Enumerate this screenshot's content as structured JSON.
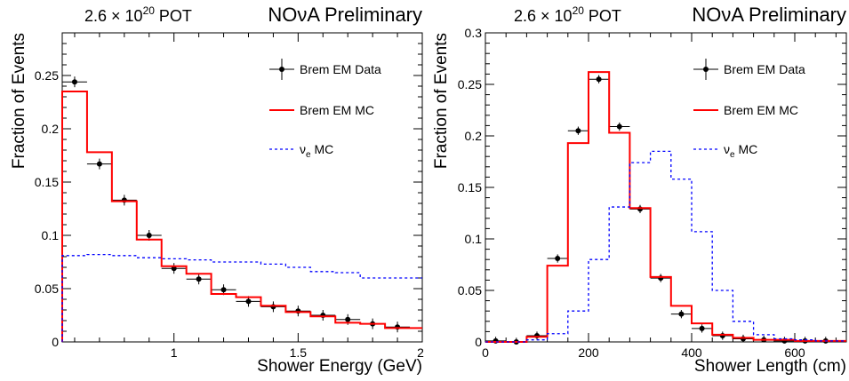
{
  "chart_data": [
    {
      "type": "histogram",
      "header": {
        "pot_prefix": "2.6 × 10",
        "pot_exp": "20",
        "pot_suffix": "POT",
        "preliminary": "NOνA Preliminary"
      },
      "xlabel": "Shower Energy (GeV)",
      "ylabel": "Fraction of Events",
      "xlim": [
        0.55,
        2.0
      ],
      "ylim": [
        0,
        0.29
      ],
      "xticks": [
        {
          "v": 1,
          "label": "1"
        },
        {
          "v": 1.5,
          "label": "1.5"
        },
        {
          "v": 2,
          "label": "2"
        }
      ],
      "yticks": [
        {
          "v": 0,
          "label": "0"
        },
        {
          "v": 0.05,
          "label": "0.05"
        },
        {
          "v": 0.1,
          "label": "0.1"
        },
        {
          "v": 0.15,
          "label": "0.15"
        },
        {
          "v": 0.2,
          "label": "0.2"
        },
        {
          "v": 0.25,
          "label": "0.25"
        }
      ],
      "legend": {
        "position": "top-right",
        "data_label": "Brem EM Data",
        "mc_label": "Brem EM MC",
        "nue_base": "ν",
        "nue_sub": "e",
        "nue_rest": "MC"
      },
      "series": [
        {
          "name": "Brem EM Data",
          "style": "points",
          "color": "#000000",
          "x": [
            0.6,
            0.7,
            0.8,
            0.9,
            1.0,
            1.1,
            1.2,
            1.3,
            1.4,
            1.5,
            1.6,
            1.7,
            1.8,
            1.9
          ],
          "y": [
            0.244,
            0.167,
            0.133,
            0.1,
            0.069,
            0.059,
            0.049,
            0.038,
            0.033,
            0.029,
            0.025,
            0.021,
            0.017,
            0.014
          ],
          "xerr": 0.05,
          "yerr": 0.005
        },
        {
          "name": "Brem EM MC",
          "style": "step",
          "color": "#ff0000",
          "edges": [
            0.55,
            0.65,
            0.75,
            0.85,
            0.95,
            1.05,
            1.15,
            1.25,
            1.35,
            1.45,
            1.55,
            1.65,
            1.75,
            1.85,
            2.0
          ],
          "values": [
            0.235,
            0.178,
            0.132,
            0.096,
            0.071,
            0.064,
            0.045,
            0.042,
            0.034,
            0.028,
            0.024,
            0.018,
            0.017,
            0.013
          ]
        },
        {
          "name": "ν_e MC",
          "style": "step-dashed",
          "color": "#0000ff",
          "edges": [
            0.55,
            0.65,
            0.75,
            0.85,
            0.95,
            1.05,
            1.15,
            1.25,
            1.35,
            1.45,
            1.55,
            1.65,
            1.75,
            1.85,
            2.0
          ],
          "values": [
            0.081,
            0.082,
            0.081,
            0.079,
            0.078,
            0.077,
            0.075,
            0.075,
            0.073,
            0.07,
            0.066,
            0.065,
            0.06,
            0.06
          ]
        }
      ]
    },
    {
      "type": "histogram",
      "header": {
        "pot_prefix": "2.6 × 10",
        "pot_exp": "20",
        "pot_suffix": "POT",
        "preliminary": "NOνA Preliminary"
      },
      "xlabel": "Shower Length (cm)",
      "ylabel": "Fraction of Events",
      "xlim": [
        0,
        700
      ],
      "ylim": [
        0,
        0.3
      ],
      "xticks": [
        {
          "v": 0,
          "label": "0"
        },
        {
          "v": 200,
          "label": "200"
        },
        {
          "v": 400,
          "label": "400"
        },
        {
          "v": 600,
          "label": "600"
        }
      ],
      "yticks": [
        {
          "v": 0,
          "label": "0"
        },
        {
          "v": 0.05,
          "label": "0.05"
        },
        {
          "v": 0.1,
          "label": "0.1"
        },
        {
          "v": 0.15,
          "label": "0.15"
        },
        {
          "v": 0.2,
          "label": "0.2"
        },
        {
          "v": 0.25,
          "label": "0.25"
        },
        {
          "v": 0.3,
          "label": "0.3"
        }
      ],
      "legend": {
        "position": "top-right",
        "data_label": "Brem EM Data",
        "mc_label": "Brem EM MC",
        "nue_base": "ν",
        "nue_sub": "e",
        "nue_rest": "MC"
      },
      "series": [
        {
          "name": "Brem EM Data",
          "style": "points",
          "color": "#000000",
          "x": [
            20,
            60,
            100,
            140,
            180,
            220,
            260,
            300,
            340,
            380,
            420,
            460,
            500,
            540,
            580,
            620,
            660
          ],
          "y": [
            0.001,
            0.0,
            0.006,
            0.081,
            0.205,
            0.255,
            0.209,
            0.129,
            0.062,
            0.027,
            0.013,
            0.006,
            0.003,
            0.002,
            0.001,
            0.001,
            0.001
          ],
          "xerr": 20,
          "yerr": 0.004
        },
        {
          "name": "Brem EM MC",
          "style": "step",
          "color": "#ff0000",
          "edges": [
            0,
            40,
            80,
            120,
            160,
            200,
            240,
            280,
            320,
            360,
            400,
            440,
            480,
            520,
            560,
            600,
            640,
            700
          ],
          "values": [
            0.0,
            0.0,
            0.005,
            0.074,
            0.193,
            0.262,
            0.203,
            0.13,
            0.063,
            0.035,
            0.018,
            0.007,
            0.004,
            0.002,
            0.002,
            0.001,
            0.001
          ]
        },
        {
          "name": "ν_e MC",
          "style": "step-dashed",
          "color": "#0000ff",
          "edges": [
            0,
            40,
            80,
            120,
            160,
            200,
            240,
            280,
            320,
            360,
            400,
            440,
            480,
            520,
            560,
            600,
            640,
            700
          ],
          "values": [
            0.0,
            0.0,
            0.002,
            0.008,
            0.03,
            0.08,
            0.131,
            0.174,
            0.185,
            0.158,
            0.107,
            0.05,
            0.02,
            0.007,
            0.003,
            0.002,
            0.001
          ]
        }
      ]
    }
  ]
}
